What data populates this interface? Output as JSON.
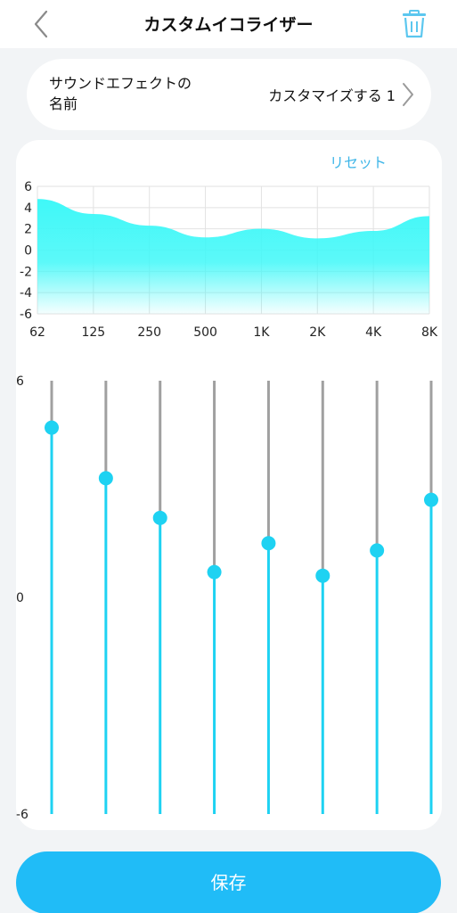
{
  "header": {
    "title": "カスタムイコライザー",
    "back_icon": "chevron-left-icon",
    "trash_icon": "trash-icon"
  },
  "sound_effect": {
    "label": "サウンドエフェクトの名前",
    "value": "カスタマイズする 1",
    "chevron_icon": "chevron-right-icon"
  },
  "equalizer": {
    "reset_label": "リセット",
    "chart_data": {
      "type": "area",
      "categories": [
        "62",
        "125",
        "250",
        "500",
        "1K",
        "2K",
        "4K",
        "8K"
      ],
      "values": [
        4.8,
        3.4,
        2.3,
        1.2,
        2.0,
        1.1,
        1.8,
        3.2
      ],
      "y_ticks": [
        "6",
        "4",
        "2",
        "0",
        "-2",
        "-4",
        "-6"
      ],
      "ylim": [
        -6,
        6
      ],
      "grid": true
    },
    "slider_scale": {
      "top": "6",
      "middle": "0",
      "bottom": "-6"
    },
    "sliders": [
      {
        "band": "62",
        "value": 4.7
      },
      {
        "band": "125",
        "value": 3.3
      },
      {
        "band": "250",
        "value": 2.2
      },
      {
        "band": "500",
        "value": 0.7
      },
      {
        "band": "1K",
        "value": 1.5
      },
      {
        "band": "2K",
        "value": 0.6
      },
      {
        "band": "4K",
        "value": 1.3
      },
      {
        "band": "8K",
        "value": 2.7
      }
    ]
  },
  "save_label": "保存",
  "colors": {
    "accent": "#20bcf7",
    "area": "#3ff8f8",
    "knob": "#1ed2f2",
    "track_inactive": "#a0a0a0",
    "link": "#3fb6e8"
  }
}
